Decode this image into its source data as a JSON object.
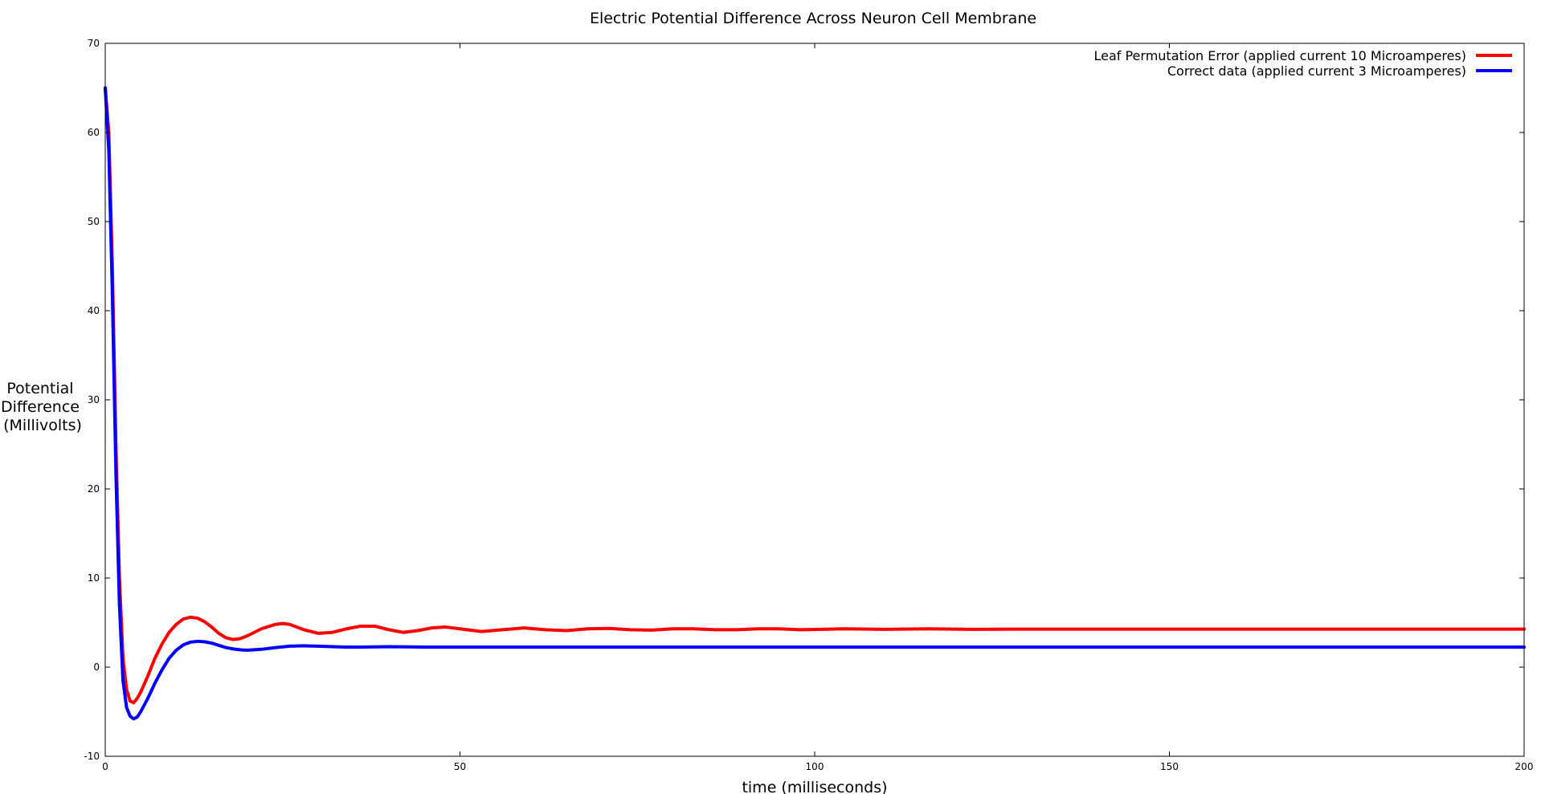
{
  "chart_data": {
    "type": "line",
    "title": "Electric Potential Difference Across Neuron Cell Membrane",
    "xlabel": "time (milliseconds)",
    "ylabel_lines": [
      "Potential",
      "Difference",
      "(Millivolts)"
    ],
    "xlim": [
      0,
      200
    ],
    "ylim": [
      -10,
      70
    ],
    "xticks": [
      0,
      50,
      100,
      150,
      200
    ],
    "yticks": [
      -10,
      0,
      10,
      20,
      30,
      40,
      50,
      60,
      70
    ],
    "grid": false,
    "legend_position": "top-right",
    "series": [
      {
        "name": "Leaf Permutation Error (applied current 10 Microamperes)",
        "color": "#ff0000",
        "x": [
          0,
          0.5,
          1,
          1.5,
          2,
          2.5,
          3,
          3.5,
          4,
          4.5,
          5,
          6,
          7,
          8,
          9,
          10,
          11,
          12,
          13,
          14,
          15,
          16,
          17,
          18,
          19,
          20,
          22,
          24,
          25,
          26,
          28,
          30,
          32,
          34,
          36,
          38,
          40,
          42,
          44,
          46,
          48,
          50,
          53,
          56,
          59,
          62,
          65,
          68,
          71,
          74,
          77,
          80,
          83,
          86,
          89,
          92,
          95,
          98,
          101,
          104,
          110,
          116,
          122,
          130,
          140,
          150,
          160,
          170,
          180,
          190,
          200
        ],
        "y": [
          65,
          60,
          45,
          25,
          10,
          1,
          -2.5,
          -3.8,
          -4,
          -3.5,
          -2.8,
          -1,
          1,
          2.6,
          3.9,
          4.8,
          5.4,
          5.6,
          5.5,
          5.1,
          4.5,
          3.8,
          3.3,
          3.1,
          3.2,
          3.5,
          4.3,
          4.8,
          4.9,
          4.8,
          4.2,
          3.8,
          3.9,
          4.3,
          4.6,
          4.6,
          4.2,
          3.9,
          4.1,
          4.4,
          4.5,
          4.3,
          4.0,
          4.2,
          4.4,
          4.2,
          4.1,
          4.3,
          4.35,
          4.2,
          4.15,
          4.3,
          4.3,
          4.2,
          4.2,
          4.3,
          4.3,
          4.2,
          4.25,
          4.3,
          4.25,
          4.3,
          4.25,
          4.27,
          4.27,
          4.27,
          4.27,
          4.27,
          4.27,
          4.27,
          4.27
        ]
      },
      {
        "name": "Correct data (applied current 3 Microamperes)",
        "color": "#0000ff",
        "x": [
          0,
          0.5,
          1,
          1.5,
          2,
          2.5,
          3,
          3.5,
          4,
          4.5,
          5,
          6,
          7,
          8,
          9,
          10,
          11,
          12,
          13,
          14,
          15,
          16,
          17,
          18,
          19,
          20,
          22,
          24,
          26,
          28,
          30,
          32,
          34,
          36,
          40,
          45,
          50,
          60,
          70,
          80,
          100,
          120,
          140,
          160,
          180,
          200
        ],
        "y": [
          65,
          58,
          42,
          22,
          7,
          -1.5,
          -4.5,
          -5.5,
          -5.8,
          -5.6,
          -5,
          -3.5,
          -1.8,
          -0.3,
          1,
          1.9,
          2.5,
          2.8,
          2.9,
          2.85,
          2.7,
          2.45,
          2.2,
          2.05,
          1.95,
          1.9,
          2.0,
          2.2,
          2.35,
          2.4,
          2.35,
          2.3,
          2.25,
          2.25,
          2.3,
          2.25,
          2.25,
          2.25,
          2.25,
          2.25,
          2.25,
          2.25,
          2.25,
          2.25,
          2.25,
          2.25
        ]
      }
    ]
  }
}
